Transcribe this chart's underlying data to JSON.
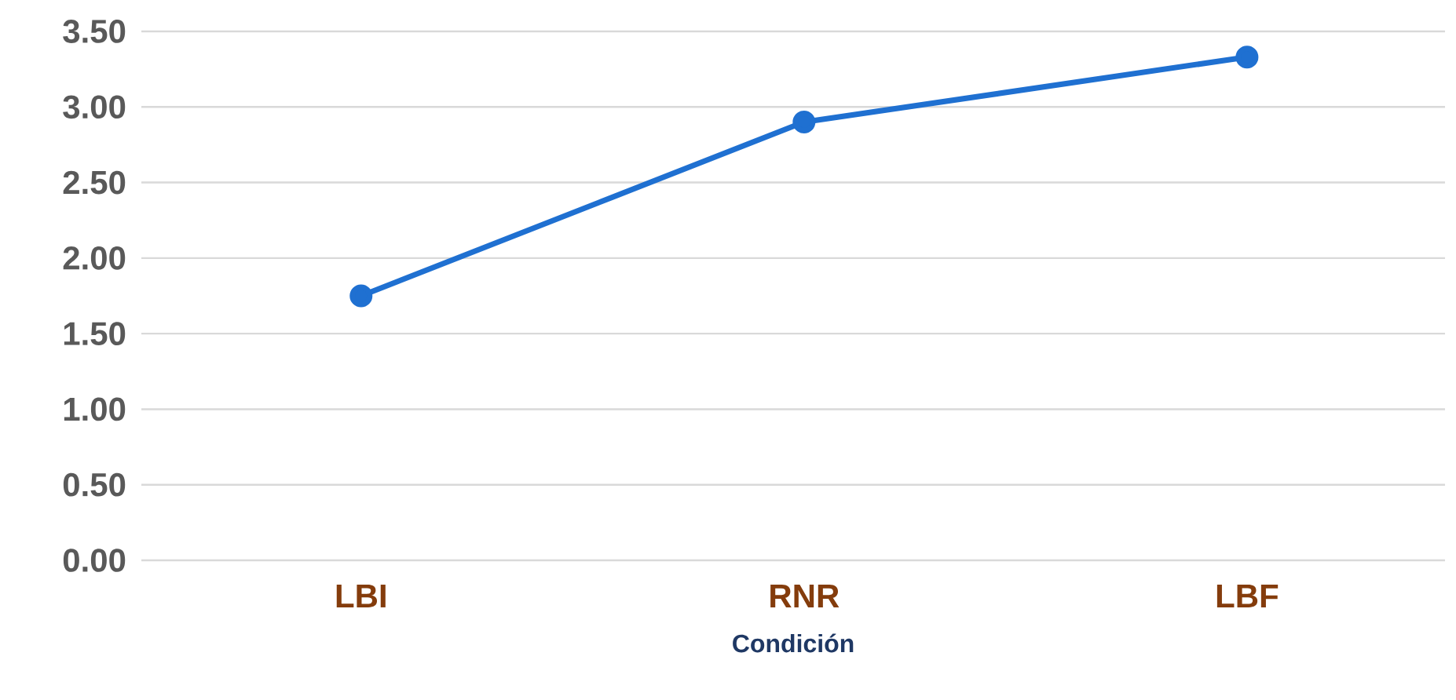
{
  "chart_data": {
    "type": "line",
    "xlabel": "Condición",
    "categories": [
      "LBI",
      "RNR",
      "LBF"
    ],
    "series": [
      {
        "color": "#1f70d1",
        "values": [
          1.75,
          2.9,
          3.33
        ]
      }
    ],
    "ylim": [
      0,
      3.5
    ],
    "yticks": [
      {
        "value": 0,
        "label": "0.00"
      },
      {
        "value": 0.5,
        "label": "0.50"
      },
      {
        "value": 1,
        "label": "1.00"
      },
      {
        "value": 1.5,
        "label": "1.50"
      },
      {
        "value": 2,
        "label": "2.00"
      },
      {
        "value": 2.5,
        "label": "2.50"
      },
      {
        "value": 3,
        "label": "3.00"
      },
      {
        "value": 3.5,
        "label": "3.50"
      }
    ],
    "grid": "y",
    "marker": "circle"
  }
}
